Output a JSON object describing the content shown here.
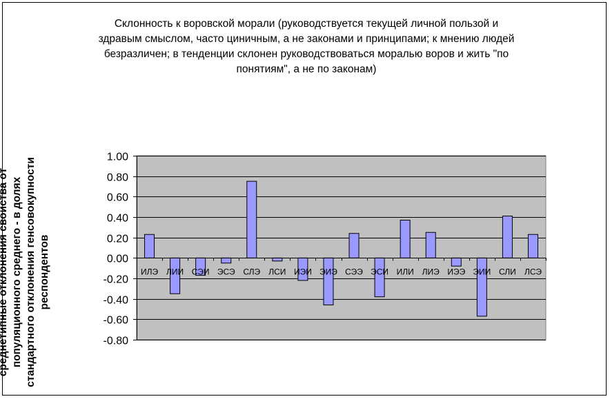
{
  "chart_data": {
    "type": "bar",
    "title": "Склонность к воровской морали (руководствуется текущей личной пользой и здравым смыслом, часто циничным, а не законами и принципами; к мнению людей безразличен; в тенденции склонен руководствоваться моралью воров и жить \"по понятиям\", а не по законам)",
    "title_lines": [
      "Склонность к воровской морали (руководствуется текущей личной пользой и",
      "здравым смыслом, часто циничным, а не законами и принципами; к мнению людей",
      "безразличен; в тенденции склонен руководствоваться моралью воров и жить \"по",
      "понятиям\", а не по законам)"
    ],
    "ylabel": "среднетипные отклонения свойства от популяционного среднего - в долях стандартного отклонения генсовокупности респондентов",
    "ylabel_lines": [
      "среднетипные отклонения свойства от",
      "популяционного среднего - в долях",
      "стандартного отклонения генсовокупности",
      "респондентов"
    ],
    "xlabel": "",
    "categories": [
      "ИЛЭ",
      "ЛИИ",
      "СЭИ",
      "ЭСЭ",
      "СЛЭ",
      "ЛСИ",
      "ИЭИ",
      "ЭИЭ",
      "СЭЭ",
      "ЭСИ",
      "ИЛИ",
      "ЛИЭ",
      "ИЭЭ",
      "ЭИИ",
      "СЛИ",
      "ЛСЭ"
    ],
    "values": [
      0.23,
      -0.35,
      -0.17,
      -0.05,
      0.75,
      -0.03,
      -0.22,
      -0.46,
      0.24,
      -0.38,
      0.37,
      0.25,
      -0.08,
      -0.57,
      0.41,
      0.23
    ],
    "ylim": [
      -0.8,
      1.0
    ],
    "yticks": [
      "1.00",
      "0.80",
      "0.60",
      "0.40",
      "0.20",
      "0.00",
      "-0.20",
      "-0.40",
      "-0.60",
      "-0.80"
    ],
    "grid": true,
    "legend": "none",
    "colors": {
      "bar_fill": "#9999ff",
      "plot_background": "#c0c0c0",
      "gridline": "#000000"
    }
  }
}
